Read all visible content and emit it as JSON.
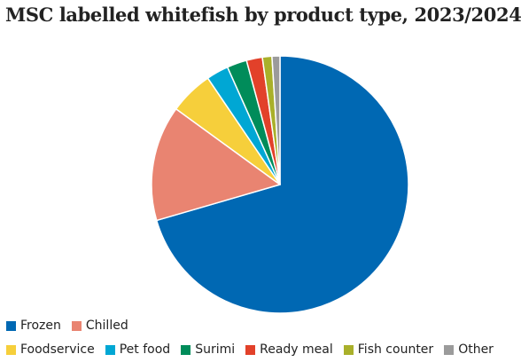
{
  "chart_data": {
    "type": "pie",
    "title": "MSC labelled whitefish by product type, 2023/2024",
    "slices": [
      {
        "label": "Frozen",
        "value": 70.5,
        "color": "#0068b3"
      },
      {
        "label": "Chilled",
        "value": 14.5,
        "color": "#e98471"
      },
      {
        "label": "Foodservice",
        "value": 5.5,
        "color": "#f6cf3b"
      },
      {
        "label": "Pet food",
        "value": 2.8,
        "color": "#00a7d4"
      },
      {
        "label": "Surimi",
        "value": 2.5,
        "color": "#008c5a"
      },
      {
        "label": "Ready meal",
        "value": 2.0,
        "color": "#e2412a"
      },
      {
        "label": "Fish counter",
        "value": 1.2,
        "color": "#a9b02a"
      },
      {
        "label": "Other",
        "value": 1.0,
        "color": "#9b9b9b"
      }
    ],
    "start": "12 o'clock",
    "direction": "clockwise",
    "legend_position": "bottom"
  }
}
